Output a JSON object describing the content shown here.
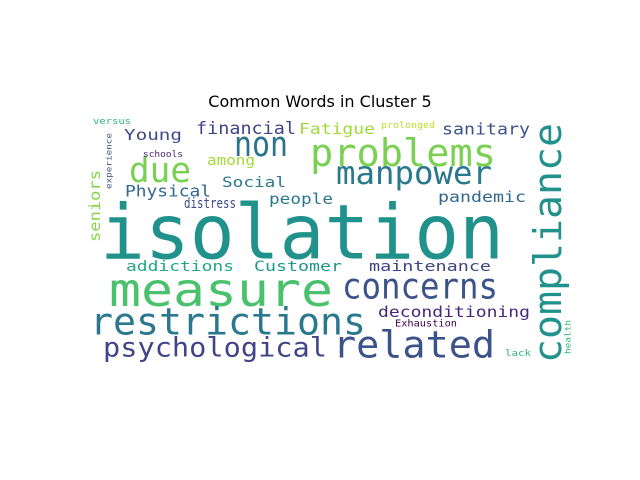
{
  "chart_data": {
    "type": "wordcloud",
    "title": "Common Words in Cluster 5",
    "words": [
      {
        "text": "isolation",
        "color": "#21918c"
      },
      {
        "text": "measure",
        "color": "#4ac16d"
      },
      {
        "text": "concerns",
        "color": "#3b528b"
      },
      {
        "text": "compliance",
        "color": "#21918c"
      },
      {
        "text": "restrictions",
        "color": "#2a788e"
      },
      {
        "text": "related",
        "color": "#3b528b"
      },
      {
        "text": "psychological",
        "color": "#414487"
      },
      {
        "text": "manpower",
        "color": "#2a788e"
      },
      {
        "text": "problems",
        "color": "#7ad151"
      },
      {
        "text": "non",
        "color": "#2c728e"
      },
      {
        "text": "due",
        "color": "#7ad151"
      },
      {
        "text": "financial",
        "color": "#414487"
      },
      {
        "text": "Fatigue",
        "color": "#a0da39"
      },
      {
        "text": "sanitary",
        "color": "#3b528b"
      },
      {
        "text": "Young",
        "color": "#3e4a89"
      },
      {
        "text": "among",
        "color": "#a0da39"
      },
      {
        "text": "Social",
        "color": "#2a788e"
      },
      {
        "text": "Physical",
        "color": "#31688e"
      },
      {
        "text": "distress",
        "color": "#3e4a89"
      },
      {
        "text": "people",
        "color": "#2a788e"
      },
      {
        "text": "pandemic",
        "color": "#31688e"
      },
      {
        "text": "seniors",
        "color": "#86d549"
      },
      {
        "text": "addictions",
        "color": "#22a884"
      },
      {
        "text": "Customer",
        "color": "#1f988b"
      },
      {
        "text": "maintenance",
        "color": "#414487"
      },
      {
        "text": "deconditioning",
        "color": "#482878"
      },
      {
        "text": "Exhaustion",
        "color": "#440154"
      },
      {
        "text": "versus",
        "color": "#35b779"
      },
      {
        "text": "experience",
        "color": "#3b528b"
      },
      {
        "text": "schools",
        "color": "#482677"
      },
      {
        "text": "prolonged",
        "color": "#bddf26"
      },
      {
        "text": "health",
        "color": "#2fb47c"
      },
      {
        "text": "lack",
        "color": "#2fb47c"
      }
    ]
  }
}
